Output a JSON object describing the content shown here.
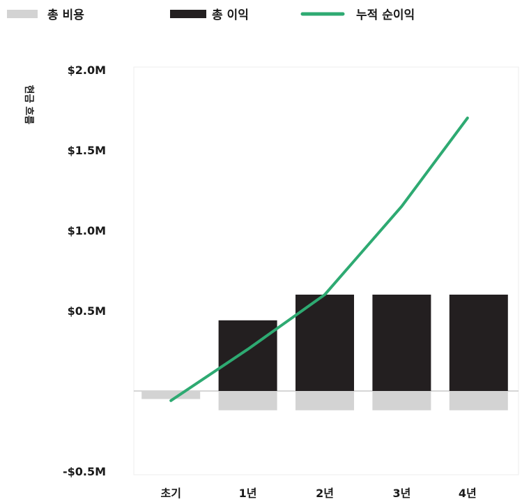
{
  "chart_data": {
    "type": "bar",
    "title": "",
    "xlabel": "",
    "ylabel": "현금 흐름",
    "categories": [
      "초기",
      "1년",
      "2년",
      "3년",
      "4년"
    ],
    "series": [
      {
        "name": "총 비용",
        "kind": "bar",
        "color": "#d3d3d3",
        "values": [
          -0.05,
          -0.12,
          -0.12,
          -0.12,
          -0.12
        ]
      },
      {
        "name": "총 이익",
        "kind": "bar",
        "color": "#231f20",
        "values": [
          0.0,
          0.44,
          0.6,
          0.6,
          0.6
        ]
      },
      {
        "name": "누적 순이익",
        "kind": "line",
        "color": "#2eaa72",
        "values": [
          -0.06,
          0.26,
          0.6,
          1.15,
          1.7
        ]
      }
    ],
    "yticks": [
      -0.5,
      0.5,
      1.0,
      1.5,
      2.0
    ],
    "ytick_labels": [
      "-$0.5M",
      "$0.5M",
      "$1.0M",
      "$1.5M",
      "$2.0M"
    ],
    "ylim": [
      -0.5,
      2.0
    ],
    "grid": false,
    "legend_position": "top"
  }
}
